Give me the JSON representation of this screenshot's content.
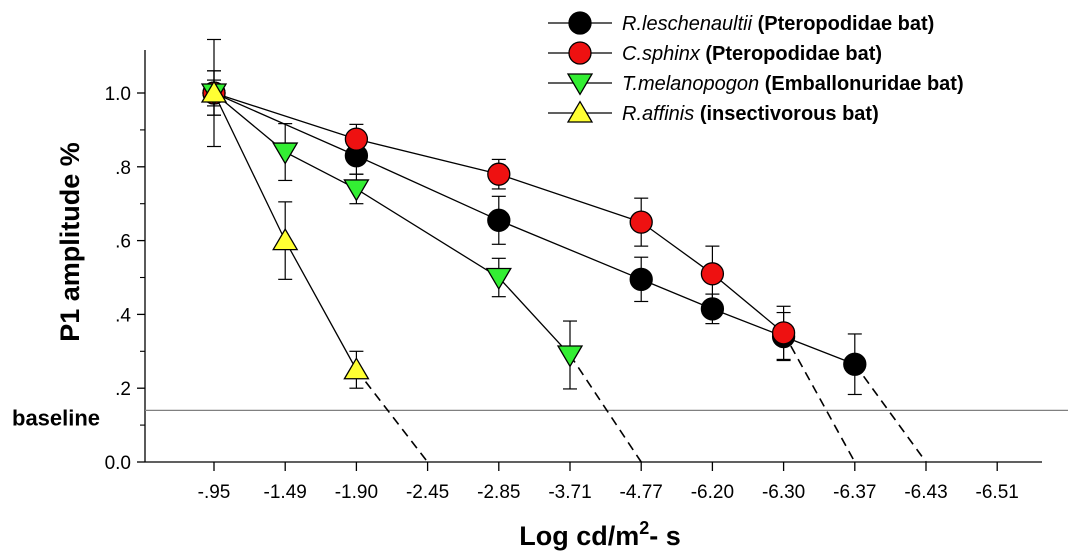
{
  "chart_data": {
    "type": "line",
    "xlabel": "Log cd/m",
    "xlabel_sup": "2",
    "xlabel_tail": "- s",
    "ylabel": "P1 amplitude %",
    "categories": [
      "-.95",
      "-1.49",
      "-1.90",
      "-2.45",
      "-2.85",
      "-3.71",
      "-4.77",
      "-6.20",
      "-6.30",
      "-6.37",
      "-6.43",
      "-6.51"
    ],
    "ylim": [
      0,
      1.0
    ],
    "yticks": [
      {
        "value": 0.0,
        "label": "0.0"
      },
      {
        "value": 0.2,
        "label": ".2"
      },
      {
        "value": 0.4,
        "label": ".4"
      },
      {
        "value": 0.6,
        "label": ".6"
      },
      {
        "value": 0.8,
        "label": ".8"
      },
      {
        "value": 1.0,
        "label": "1.0"
      }
    ],
    "baseline": {
      "label": "baseline",
      "value": 0.14
    },
    "legend_position": "top-right",
    "grid": false,
    "series": [
      {
        "name_italic": "R.leschenaultii",
        "name_bold": "(Pteropodidae bat)",
        "marker": "circle",
        "color": "#000000",
        "points": [
          {
            "x": 0,
            "y": 1.0,
            "err": 0.06
          },
          {
            "x": 2,
            "y": 0.83,
            "err": 0.05
          },
          {
            "x": 4,
            "y": 0.655,
            "err": 0.065
          },
          {
            "x": 6,
            "y": 0.495,
            "err": 0.06
          },
          {
            "x": 7,
            "y": 0.415,
            "err": 0.04
          },
          {
            "x": 8,
            "y": 0.34,
            "err": 0.065
          },
          {
            "x": 9,
            "y": 0.265,
            "err": 0.082
          }
        ],
        "extrapolate_to": 10
      },
      {
        "name_italic": "C.sphinx",
        "name_bold": "(Pteropodidae bat)",
        "marker": "circle",
        "color": "#ee1111",
        "points": [
          {
            "x": 0,
            "y": 1.0,
            "err": 0.035
          },
          {
            "x": 2,
            "y": 0.875,
            "err": 0.04
          },
          {
            "x": 4,
            "y": 0.78,
            "err": 0.04
          },
          {
            "x": 6,
            "y": 0.65,
            "err": 0.065
          },
          {
            "x": 7,
            "y": 0.51,
            "err": 0.075
          },
          {
            "x": 8,
            "y": 0.35,
            "err": 0.072
          }
        ],
        "extrapolate_to": 9
      },
      {
        "name_italic": "T.melanopogon",
        "name_bold": "(Emballonuridae bat)",
        "marker": "triangle-down",
        "color": "#33ee33",
        "points": [
          {
            "x": 0,
            "y": 1.0,
            "err": 0.06
          },
          {
            "x": 1,
            "y": 0.84,
            "err": 0.077
          },
          {
            "x": 2,
            "y": 0.74,
            "err": 0.04
          },
          {
            "x": 4,
            "y": 0.5,
            "err": 0.052
          },
          {
            "x": 5,
            "y": 0.29,
            "err": 0.092
          }
        ],
        "extrapolate_to": 6
      },
      {
        "name_italic": "R.affinis",
        "name_bold": "(insectivorous bat)",
        "marker": "triangle-up",
        "color": "#ffff33",
        "points": [
          {
            "x": 0,
            "y": 1.0,
            "err": 0.145
          },
          {
            "x": 1,
            "y": 0.6,
            "err": 0.105
          },
          {
            "x": 2,
            "y": 0.25,
            "err": 0.05
          }
        ],
        "extrapolate_to": 3
      }
    ]
  }
}
